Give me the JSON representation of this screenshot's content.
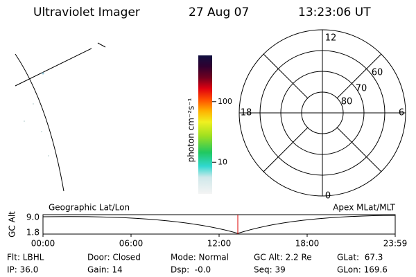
{
  "header": {
    "title": "Ultraviolet Imager",
    "date": "27 Aug 07",
    "time": "13:23:06 UT"
  },
  "colorbar": {
    "label": "photon cm⁻²s⁻¹",
    "scale": "log",
    "clim": [
      3,
      580
    ],
    "ticks": [
      10,
      100
    ]
  },
  "polar": {
    "mlt_labels": [
      "12",
      "18",
      "6",
      "0"
    ],
    "lat_labels": [
      "80",
      "70",
      "60"
    ]
  },
  "timeline": {
    "left_label": "Geographic Lat/Lon",
    "right_label": "Apex MLat/MLT",
    "axis_label": "GC Alt",
    "y_labels": [
      "9.0",
      "1.8"
    ],
    "x_labels": [
      "00:00",
      "06:00",
      "12:00",
      "18:00",
      "23:59"
    ]
  },
  "footer": {
    "rows": [
      [
        "Flt: LBHL",
        "Door: Closed",
        "Mode: Normal",
        "GC Alt: 2.2 Re",
        "GLat:  67.3"
      ],
      [
        "IP: 36.0",
        "Gain: 14",
        "Dsp:  -0.0",
        "Seq: 39",
        "GLon: 169.6"
      ]
    ]
  }
}
